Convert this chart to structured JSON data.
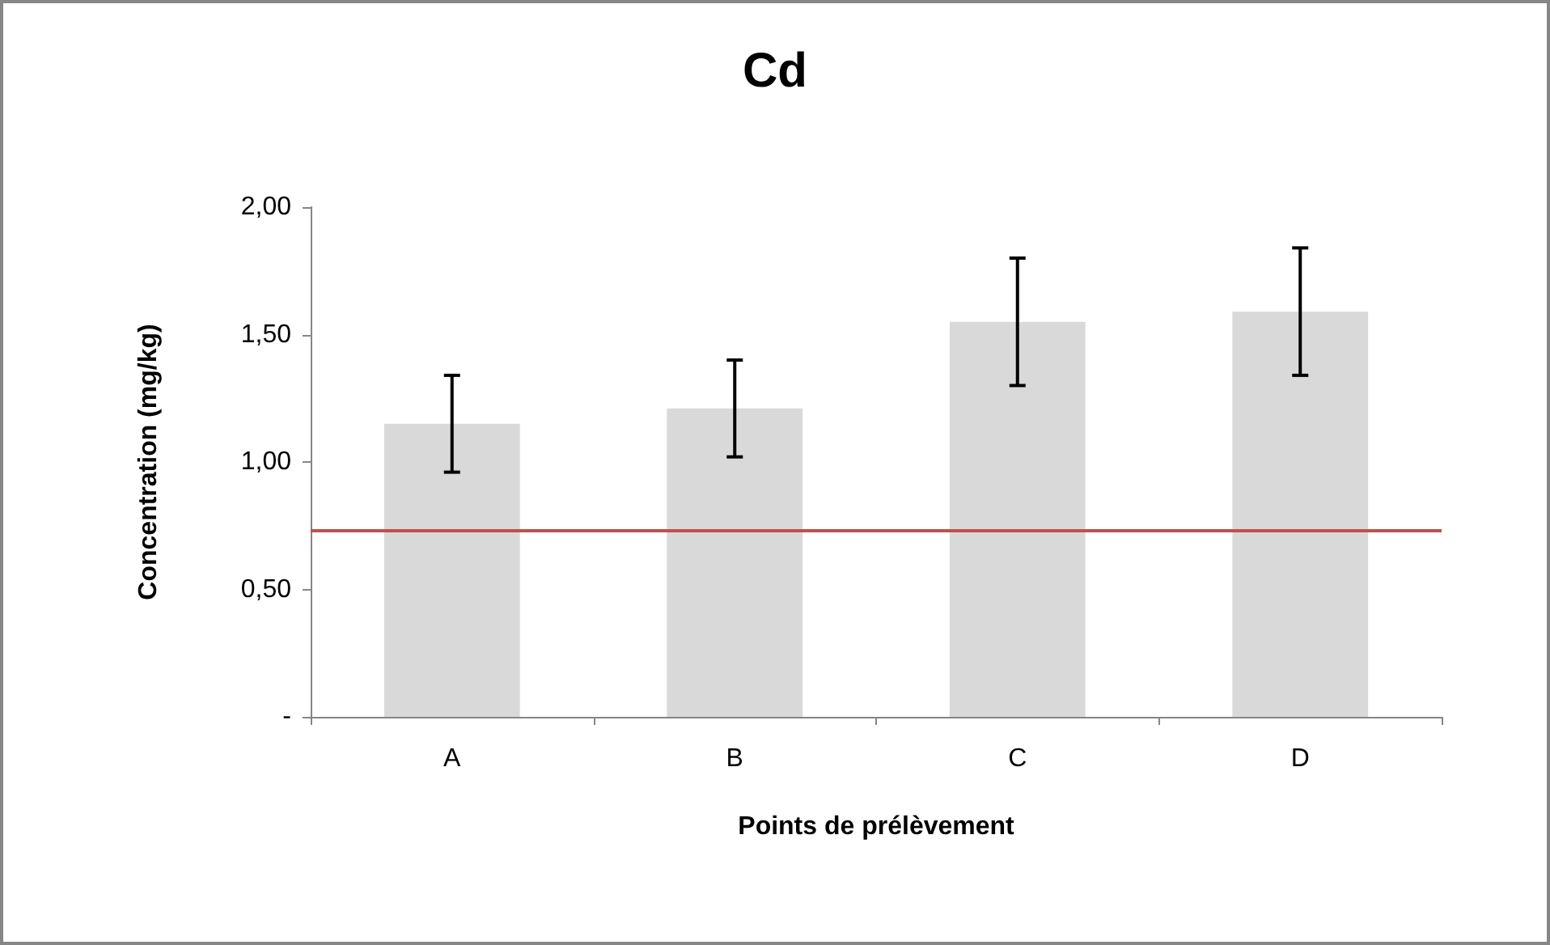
{
  "chart_data": {
    "type": "bar",
    "title": "Cd",
    "xlabel": "Points de prélèvement",
    "ylabel": "Concentration (mg/kg)",
    "categories": [
      "A",
      "B",
      "C",
      "D"
    ],
    "values": [
      1.15,
      1.21,
      1.55,
      1.59
    ],
    "errors": [
      0.19,
      0.19,
      0.25,
      0.25
    ],
    "color": "#d9d9d9",
    "ylim": [
      0,
      2
    ],
    "yticks": [
      {
        "value": 0,
        "label": "-"
      },
      {
        "value": 0.5,
        "label": "0,50"
      },
      {
        "value": 1,
        "label": "1,00"
      },
      {
        "value": 1.5,
        "label": "1,50"
      },
      {
        "value": 2,
        "label": "2,00"
      }
    ],
    "ref_lines": [
      {
        "axis": "y",
        "value": 0.73,
        "color": "#c0504d"
      }
    ],
    "grid": false
  }
}
